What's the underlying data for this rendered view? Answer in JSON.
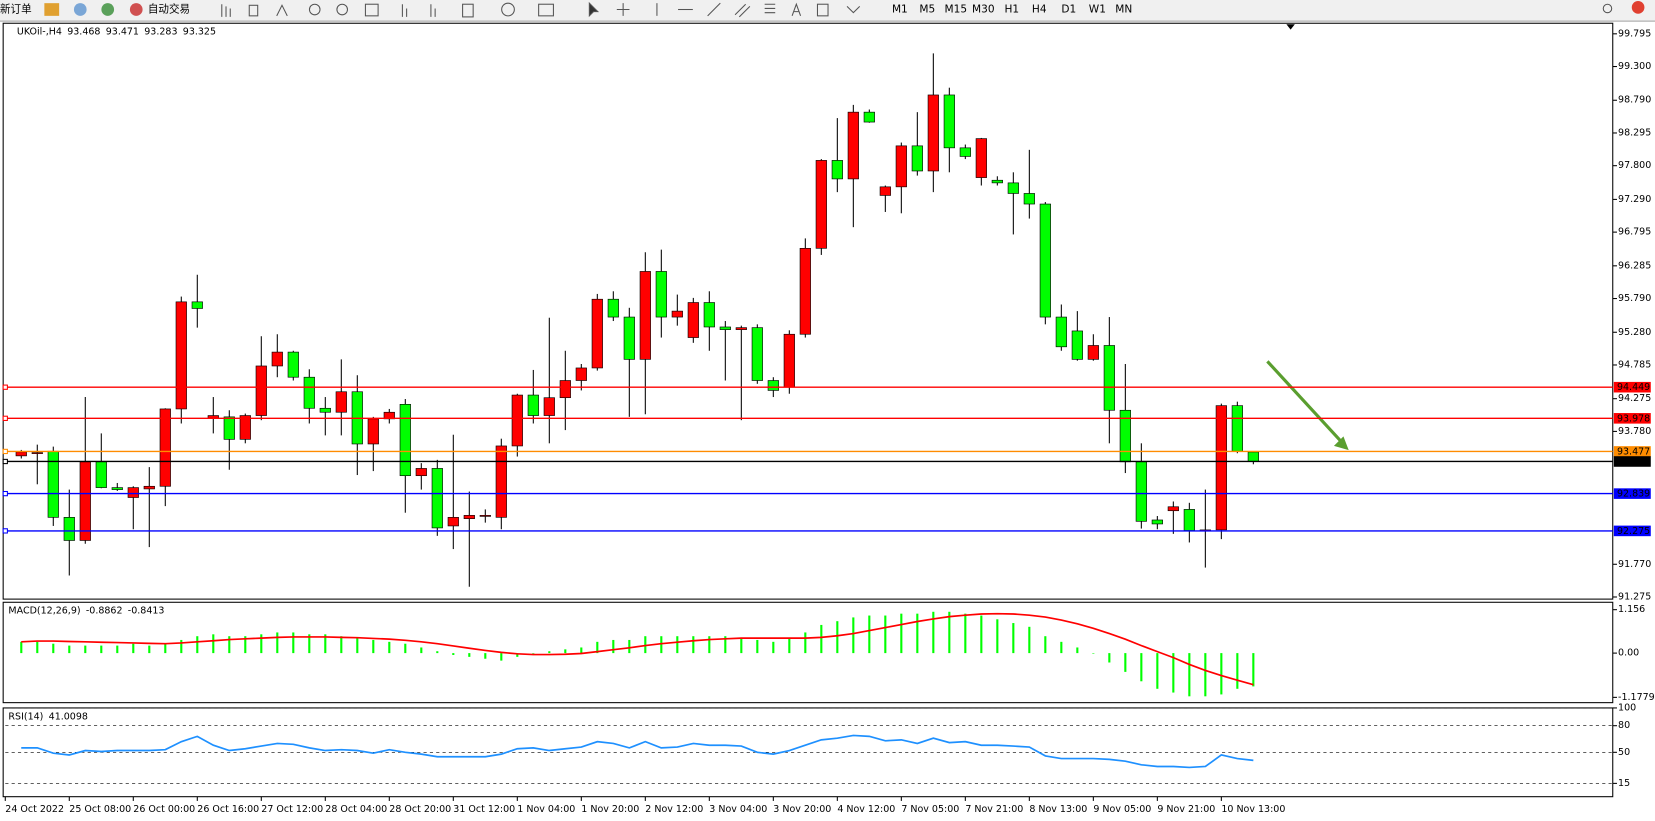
{
  "toolbar": {
    "new_order": "新订单",
    "auto_trading": "自动交易",
    "timeframes": [
      "M1",
      "M5",
      "M15",
      "M30",
      "H1",
      "H4",
      "D1",
      "W1",
      "MN"
    ]
  },
  "chart_data": [
    {
      "type": "candlestick",
      "title": "UKOil-,H4",
      "categories": [
        "24 Oct 2022",
        null,
        null,
        null,
        "25 Oct 08:00",
        null,
        null,
        null,
        "26 Oct 00:00",
        null,
        null,
        null,
        "26 Oct 16:00",
        null,
        null,
        null,
        "27 Oct 12:00",
        null,
        null,
        null,
        "28 Oct 04:00",
        null,
        null,
        null,
        "28 Oct 20:00",
        null,
        null,
        null,
        "31 Oct 12:00",
        null,
        null,
        null,
        "1 Nov 04:00",
        null,
        null,
        null,
        "1 Nov 20:00",
        null,
        null,
        null,
        "2 Nov 12:00",
        null,
        null,
        null,
        "3 Nov 04:00",
        null,
        null,
        null,
        "3 Nov 20:00",
        null,
        null,
        null,
        "4 Nov 12:00",
        null,
        null,
        null,
        "7 Nov 05:00",
        null,
        null,
        null,
        "7 Nov 21:00",
        null,
        null,
        null,
        "8 Nov 13:00",
        null,
        null,
        null,
        "9 Nov 05:00",
        null,
        null,
        null,
        "9 Nov 21:00",
        null,
        null,
        null,
        "10 Nov 13:00",
        null,
        null
      ],
      "open": [
        null,
        93.41,
        93.45,
        93.48,
        92.48,
        92.13,
        93.32,
        92.93,
        92.78,
        92.91,
        92.95,
        94.12,
        95.74,
        93.98,
        94.0,
        93.66,
        94.02,
        94.77,
        94.98,
        94.6,
        94.13,
        94.07,
        94.38,
        93.59,
        93.97,
        94.19,
        93.11,
        93.22,
        92.35,
        92.46,
        92.51,
        92.48,
        93.56,
        94.33,
        94.02,
        94.29,
        94.55,
        94.74,
        95.78,
        95.51,
        94.87,
        96.2,
        95.51,
        95.2,
        95.73,
        95.36,
        95.32,
        95.35,
        94.55,
        94.45,
        95.25,
        96.55,
        97.88,
        97.6,
        98.61,
        97.35,
        97.48,
        98.1,
        97.72,
        98.87,
        98.07,
        97.62,
        97.58,
        97.54,
        97.38,
        97.22,
        95.51,
        95.3,
        94.87,
        95.08,
        94.1,
        93.32,
        92.44,
        92.58,
        92.6,
        92.28,
        92.29,
        94.17,
        93.468
      ],
      "high": [
        null,
        93.5,
        93.58,
        93.55,
        92.9,
        94.3,
        93.75,
        93.0,
        92.95,
        93.24,
        94.13,
        95.82,
        96.15,
        94.3,
        94.1,
        94.05,
        95.22,
        95.25,
        95.0,
        94.72,
        94.3,
        94.87,
        94.63,
        94.0,
        94.12,
        94.27,
        93.3,
        93.35,
        93.73,
        92.87,
        92.6,
        93.67,
        94.35,
        94.71,
        95.5,
        95.0,
        94.8,
        95.86,
        95.9,
        95.65,
        96.49,
        96.53,
        95.85,
        95.8,
        95.9,
        95.45,
        95.38,
        95.4,
        94.6,
        95.31,
        96.7,
        97.9,
        98.52,
        98.72,
        98.65,
        97.5,
        98.15,
        98.61,
        99.5,
        98.98,
        98.12,
        98.22,
        97.64,
        97.7,
        98.04,
        97.25,
        95.7,
        95.6,
        95.25,
        95.51,
        94.8,
        93.6,
        92.5,
        92.72,
        92.7,
        92.9,
        94.2,
        94.23,
        93.471
      ],
      "low": [
        null,
        93.37,
        92.98,
        92.35,
        91.6,
        92.08,
        92.92,
        92.88,
        92.3,
        92.03,
        92.65,
        93.9,
        95.35,
        93.75,
        93.2,
        93.6,
        93.95,
        94.6,
        94.55,
        93.9,
        93.72,
        93.72,
        93.12,
        93.18,
        93.9,
        92.55,
        92.9,
        92.2,
        92.0,
        91.43,
        92.4,
        92.3,
        93.4,
        93.9,
        93.6,
        93.8,
        94.4,
        94.7,
        95.45,
        94.0,
        94.04,
        95.2,
        95.38,
        95.12,
        95.0,
        94.55,
        93.95,
        94.5,
        94.3,
        94.35,
        95.2,
        96.45,
        97.4,
        96.87,
        98.45,
        97.1,
        97.08,
        97.65,
        97.4,
        97.7,
        97.9,
        97.5,
        97.5,
        96.76,
        97.0,
        95.4,
        95.0,
        94.85,
        94.85,
        93.6,
        93.15,
        92.31,
        92.3,
        92.23,
        92.1,
        91.72,
        92.15,
        93.45,
        93.283
      ],
      "close": [
        null,
        93.47,
        93.46,
        92.48,
        92.13,
        93.32,
        92.93,
        92.9,
        92.93,
        92.95,
        94.12,
        95.74,
        95.64,
        94.02,
        93.66,
        94.02,
        94.77,
        94.98,
        94.6,
        94.13,
        94.07,
        94.38,
        93.59,
        93.97,
        94.07,
        93.11,
        93.22,
        92.32,
        92.48,
        92.51,
        92.51,
        93.56,
        94.33,
        94.02,
        94.29,
        94.55,
        94.74,
        95.78,
        95.51,
        94.87,
        96.2,
        95.51,
        95.6,
        95.73,
        95.36,
        95.32,
        95.35,
        94.55,
        94.4,
        95.25,
        96.55,
        97.88,
        97.6,
        98.61,
        98.46,
        97.48,
        98.1,
        97.72,
        98.87,
        98.07,
        97.94,
        98.21,
        97.54,
        97.38,
        97.22,
        95.51,
        95.06,
        94.87,
        95.08,
        94.1,
        93.32,
        92.42,
        92.38,
        92.64,
        92.28,
        92.29,
        94.17,
        93.48,
        93.325
      ],
      "up_color": "#ff0000",
      "down_color": "#00ff00",
      "ylim": [
        91.243,
        99.955
      ],
      "yticks": [
        99.795,
        {
          "value": 99.3,
          "label": "99.300"
        },
        {
          "value": 98.79,
          "label": "98.790"
        },
        98.295,
        {
          "value": 97.8,
          "label": "97.800"
        },
        {
          "value": 97.29,
          "label": "97.290"
        },
        96.795,
        96.285,
        {
          "value": 95.79,
          "label": "95.790"
        },
        {
          "value": 95.28,
          "label": "95.280"
        },
        94.785,
        94.275,
        {
          "value": 93.78,
          "label": "93.780"
        },
        {
          "value": 91.77,
          "label": "91.770"
        },
        91.275
      ],
      "lines": [
        {
          "value": 94.449,
          "color": "#ff0000"
        },
        {
          "value": 93.978,
          "color": "#ff0000"
        },
        {
          "value": 93.477,
          "color": "#ff8c00"
        },
        {
          "value": 92.839,
          "color": "#0000ff"
        },
        {
          "value": 92.275,
          "color": "#0000ff"
        }
      ]
    },
    {
      "type": "bar",
      "title": "MACD(12,26,9)",
      "series": [
        {
          "type": "bar",
          "color": "#00ff00",
          "values": [
            null,
            0.3,
            0.3,
            0.25,
            0.2,
            0.2,
            0.2,
            0.2,
            0.25,
            0.2,
            0.25,
            0.35,
            0.45,
            0.5,
            0.45,
            0.45,
            0.5,
            0.55,
            0.55,
            0.5,
            0.5,
            0.45,
            0.4,
            0.35,
            0.3,
            0.25,
            0.15,
            0.05,
            -0.05,
            -0.1,
            -0.15,
            -0.2,
            -0.1,
            0.0,
            0.05,
            0.1,
            0.15,
            0.3,
            0.35,
            0.35,
            0.45,
            0.45,
            0.45,
            0.45,
            0.45,
            0.45,
            0.4,
            0.35,
            0.3,
            0.4,
            0.55,
            0.75,
            0.85,
            0.95,
            1.0,
            1.0,
            1.05,
            1.05,
            1.1,
            1.1,
            1.05,
            1.0,
            0.9,
            0.8,
            0.7,
            0.45,
            0.3,
            0.15,
            0.0,
            -0.25,
            -0.5,
            -0.75,
            -0.95,
            -1.05,
            -1.15,
            -1.15,
            -1.1,
            -0.95,
            -0.8862
          ]
        },
        {
          "type": "line",
          "color": "#ff0000",
          "values": [
            null,
            0.3,
            0.32,
            0.32,
            0.31,
            0.3,
            0.29,
            0.28,
            0.27,
            0.26,
            0.25,
            0.27,
            0.3,
            0.33,
            0.36,
            0.38,
            0.4,
            0.42,
            0.43,
            0.43,
            0.43,
            0.42,
            0.41,
            0.39,
            0.37,
            0.34,
            0.3,
            0.25,
            0.19,
            0.13,
            0.07,
            0.02,
            -0.02,
            -0.04,
            -0.04,
            -0.03,
            -0.01,
            0.04,
            0.09,
            0.14,
            0.2,
            0.25,
            0.29,
            0.33,
            0.36,
            0.38,
            0.4,
            0.4,
            0.4,
            0.4,
            0.4,
            0.42,
            0.46,
            0.52,
            0.6,
            0.68,
            0.76,
            0.84,
            0.91,
            0.97,
            1.01,
            1.04,
            1.05,
            1.04,
            1.01,
            0.96,
            0.88,
            0.78,
            0.66,
            0.52,
            0.37,
            0.2,
            0.04,
            -0.12,
            -0.3,
            -0.46,
            -0.6,
            -0.72,
            -0.8413
          ]
        }
      ],
      "ylim": [
        -1.319,
        1.353
      ],
      "yticks": [
        1.156,
        {
          "value": 0,
          "label": "0.00"
        },
        -1.1779
      ]
    },
    {
      "type": "line",
      "title": "RSI(14)",
      "series": [
        {
          "type": "line",
          "color": "#1e90ff",
          "values": [
            null,
            55,
            55,
            49,
            47,
            52,
            51,
            52,
            52,
            52,
            53,
            62,
            68,
            58,
            52,
            54,
            57,
            60,
            59,
            55,
            52,
            53,
            52,
            49,
            53,
            50,
            48,
            45,
            45,
            45,
            45,
            48,
            54,
            55,
            52,
            54,
            56,
            62,
            60,
            55,
            62,
            55,
            56,
            60,
            58,
            58,
            57,
            50,
            48,
            52,
            58,
            64,
            66,
            69,
            68,
            63,
            64,
            60,
            66,
            61,
            62,
            58,
            58,
            57,
            56,
            46,
            43,
            43,
            43,
            42,
            40,
            36,
            34,
            34,
            33,
            34,
            47,
            43,
            41.0098
          ]
        }
      ],
      "ylim": [
        0,
        100
      ],
      "yticks": [
        100,
        80,
        50,
        15
      ],
      "grid": true
    }
  ]
}
